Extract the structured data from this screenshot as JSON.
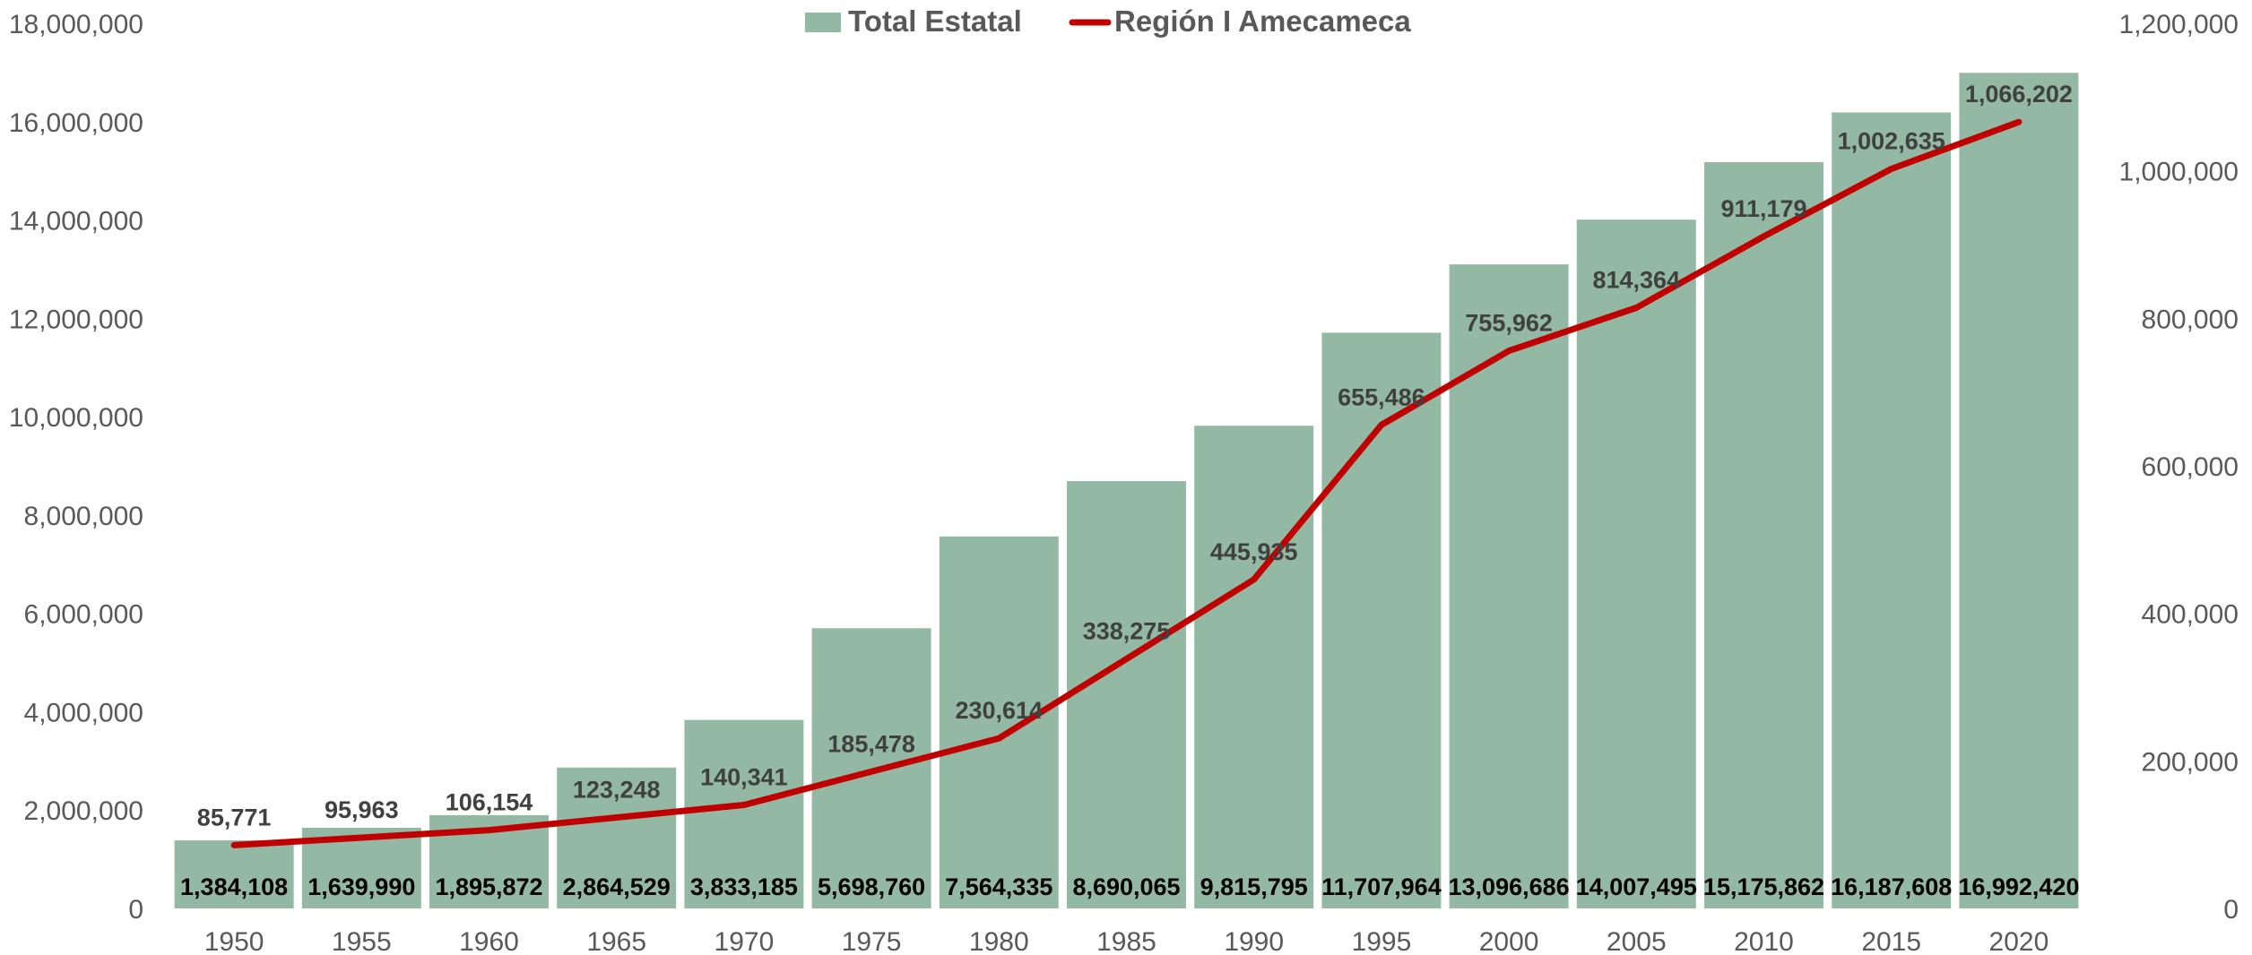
{
  "chart_data": {
    "type": "bar",
    "categories": [
      "1950",
      "1955",
      "1960",
      "1965",
      "1970",
      "1975",
      "1980",
      "1985",
      "1990",
      "1995",
      "2000",
      "2005",
      "2010",
      "2015",
      "2020"
    ],
    "series": [
      {
        "name": "Total Estatal",
        "type": "bar",
        "axis": "left",
        "color": "#93b9a5",
        "values": [
          1384108,
          1639990,
          1895872,
          2864529,
          3833185,
          5698760,
          7564335,
          8690065,
          9815795,
          11707964,
          13096686,
          14007495,
          15175862,
          16187608,
          16992420
        ],
        "labels": [
          "1,384,108",
          "1,639,990",
          "1,895,872",
          "2,864,529",
          "3,833,185",
          "5,698,760",
          "7,564,335",
          "8,690,065",
          "9,815,795",
          "11,707,964",
          "13,096,686",
          "14,007,495",
          "15,175,862",
          "16,187,608",
          "16,992,420"
        ]
      },
      {
        "name": "Región I Amecameca",
        "type": "line",
        "axis": "right",
        "color": "#c00000",
        "values": [
          85771,
          95963,
          106154,
          123248,
          140341,
          185478,
          230614,
          338275,
          445935,
          655486,
          755962,
          814364,
          911179,
          1002635,
          1066202
        ],
        "labels": [
          "85,771",
          "95,963",
          "106,154",
          "123,248",
          "140,341",
          "185,478",
          "230,614",
          "338,275",
          "445,935",
          "655,486",
          "755,962",
          "814,364",
          "911,179",
          "1,002,635",
          "1,066,202"
        ]
      }
    ],
    "left_axis": {
      "ylim": [
        0,
        18000000
      ],
      "ticks": [
        0,
        2000000,
        4000000,
        6000000,
        8000000,
        10000000,
        12000000,
        14000000,
        16000000,
        18000000
      ],
      "tick_labels": [
        "0",
        "2,000,000",
        "4,000,000",
        "6,000,000",
        "8,000,000",
        "10,000,000",
        "12,000,000",
        "14,000,000",
        "16,000,000",
        "18,000,000"
      ]
    },
    "right_axis": {
      "ylim": [
        0,
        1200000
      ],
      "ticks": [
        0,
        200000,
        400000,
        600000,
        800000,
        1000000,
        1200000
      ],
      "tick_labels": [
        "0",
        "200,000",
        "400,000",
        "600,000",
        "800,000",
        "1,000,000",
        "1,200,000"
      ]
    },
    "legend": {
      "placement": "top-center",
      "items": [
        "Total Estatal",
        "Región I Amecameca"
      ]
    },
    "grid": false
  }
}
